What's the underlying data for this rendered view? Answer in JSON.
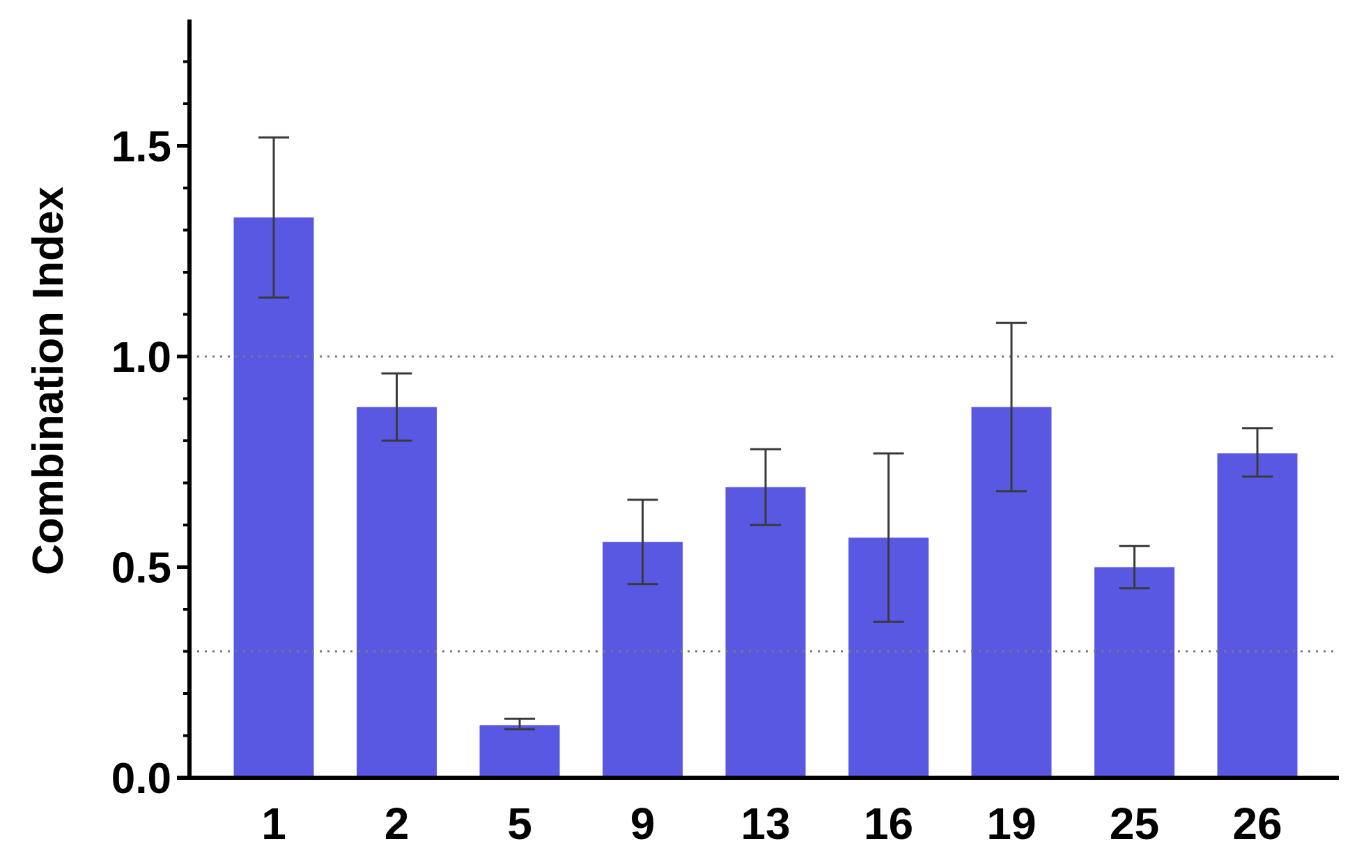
{
  "chart_data": {
    "type": "bar",
    "title": "",
    "xlabel": "",
    "ylabel": "Combination Index",
    "categories": [
      "1",
      "2",
      "5",
      "9",
      "13",
      "16",
      "19",
      "25",
      "26"
    ],
    "values": [
      1.33,
      0.88,
      0.125,
      0.56,
      0.69,
      0.57,
      0.88,
      0.5,
      0.77
    ],
    "error_low": [
      1.14,
      0.8,
      0.115,
      0.46,
      0.6,
      0.37,
      0.68,
      0.45,
      0.715
    ],
    "error_high": [
      1.52,
      0.96,
      0.14,
      0.66,
      0.78,
      0.77,
      1.08,
      0.55,
      0.83
    ],
    "ylim": [
      0,
      1.8
    ],
    "yticks": [
      "0.0",
      "0.5",
      "1.0",
      "1.5"
    ],
    "reference_lines": [
      1.0,
      0.3
    ],
    "bar_color": "#5858e2",
    "error_color": "#3a3a3a",
    "grid": false,
    "legend": "none"
  }
}
